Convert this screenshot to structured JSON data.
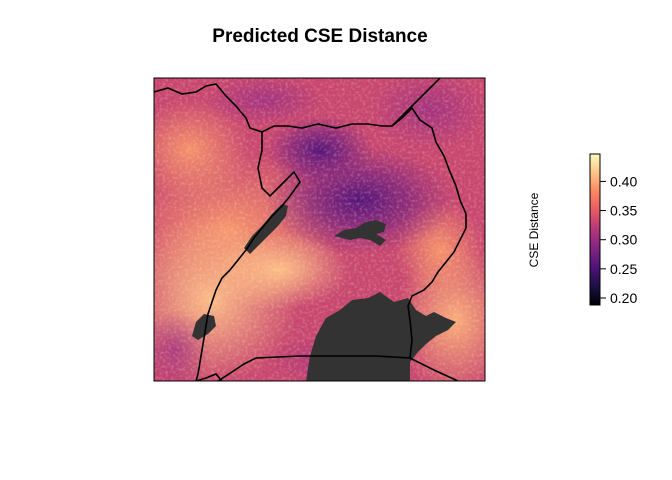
{
  "title": "Predicted CSE Distance",
  "legend": {
    "label": "CSE Distance",
    "ticks": [
      "0.20",
      "0.25",
      "0.30",
      "0.35",
      "0.40"
    ],
    "tick_values": [
      0.2,
      0.25,
      0.3,
      0.35,
      0.4
    ],
    "range": [
      0.188,
      0.447
    ],
    "palette": [
      "#000004",
      "#1c1044",
      "#4f127b",
      "#812581",
      "#b5367a",
      "#e55964",
      "#fb8761",
      "#fec287",
      "#fcfdbf"
    ]
  },
  "colors": {
    "lake": "#333333",
    "border": "#000000",
    "frame": "#000000"
  }
}
